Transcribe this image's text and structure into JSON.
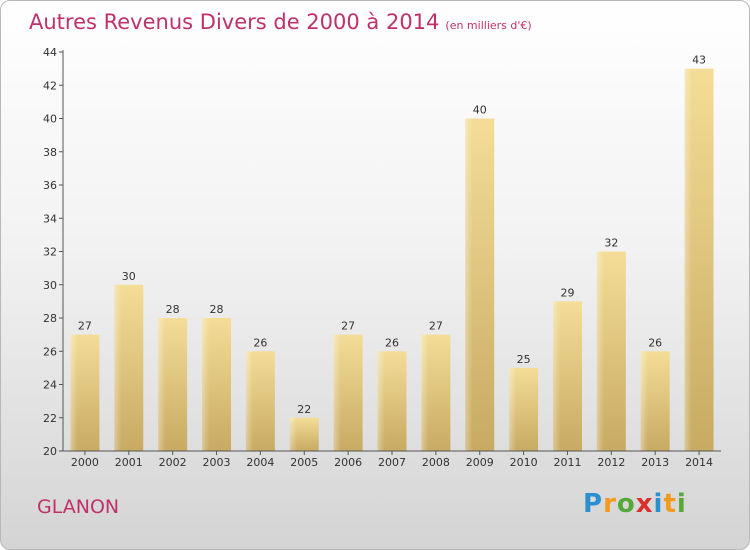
{
  "chart_data": {
    "type": "bar",
    "title": "Autres Revenus Divers de 2000 à 2014",
    "subtitle": "(en milliers d'€)",
    "categories": [
      "2000",
      "2001",
      "2002",
      "2003",
      "2004",
      "2005",
      "2006",
      "2007",
      "2008",
      "2009",
      "2010",
      "2011",
      "2012",
      "2013",
      "2014"
    ],
    "values": [
      27,
      30,
      28,
      28,
      26,
      22,
      27,
      26,
      27,
      40,
      25,
      29,
      32,
      26,
      43
    ],
    "ylim": [
      20,
      44
    ],
    "yticks": [
      20,
      22,
      24,
      26,
      28,
      30,
      32,
      34,
      36,
      38,
      40,
      42,
      44
    ],
    "grid": false,
    "bar_color": "#e8cd85",
    "label_position": "above-bar"
  },
  "footer": {
    "place_name": "GLANON",
    "logo": {
      "letters": [
        {
          "char": "P",
          "color": "#2a8fd0"
        },
        {
          "char": "r",
          "color": "#f39a1e"
        },
        {
          "char": "o",
          "color": "#57a83b"
        },
        {
          "char": "x",
          "color": "#d9302c"
        },
        {
          "char": "i",
          "color": "#2a8fd0"
        },
        {
          "char": "t",
          "color": "#f39a1e"
        },
        {
          "char": "i",
          "color": "#57a83b"
        }
      ]
    }
  },
  "colors": {
    "title": "#c0306a",
    "axis": "#555555"
  }
}
